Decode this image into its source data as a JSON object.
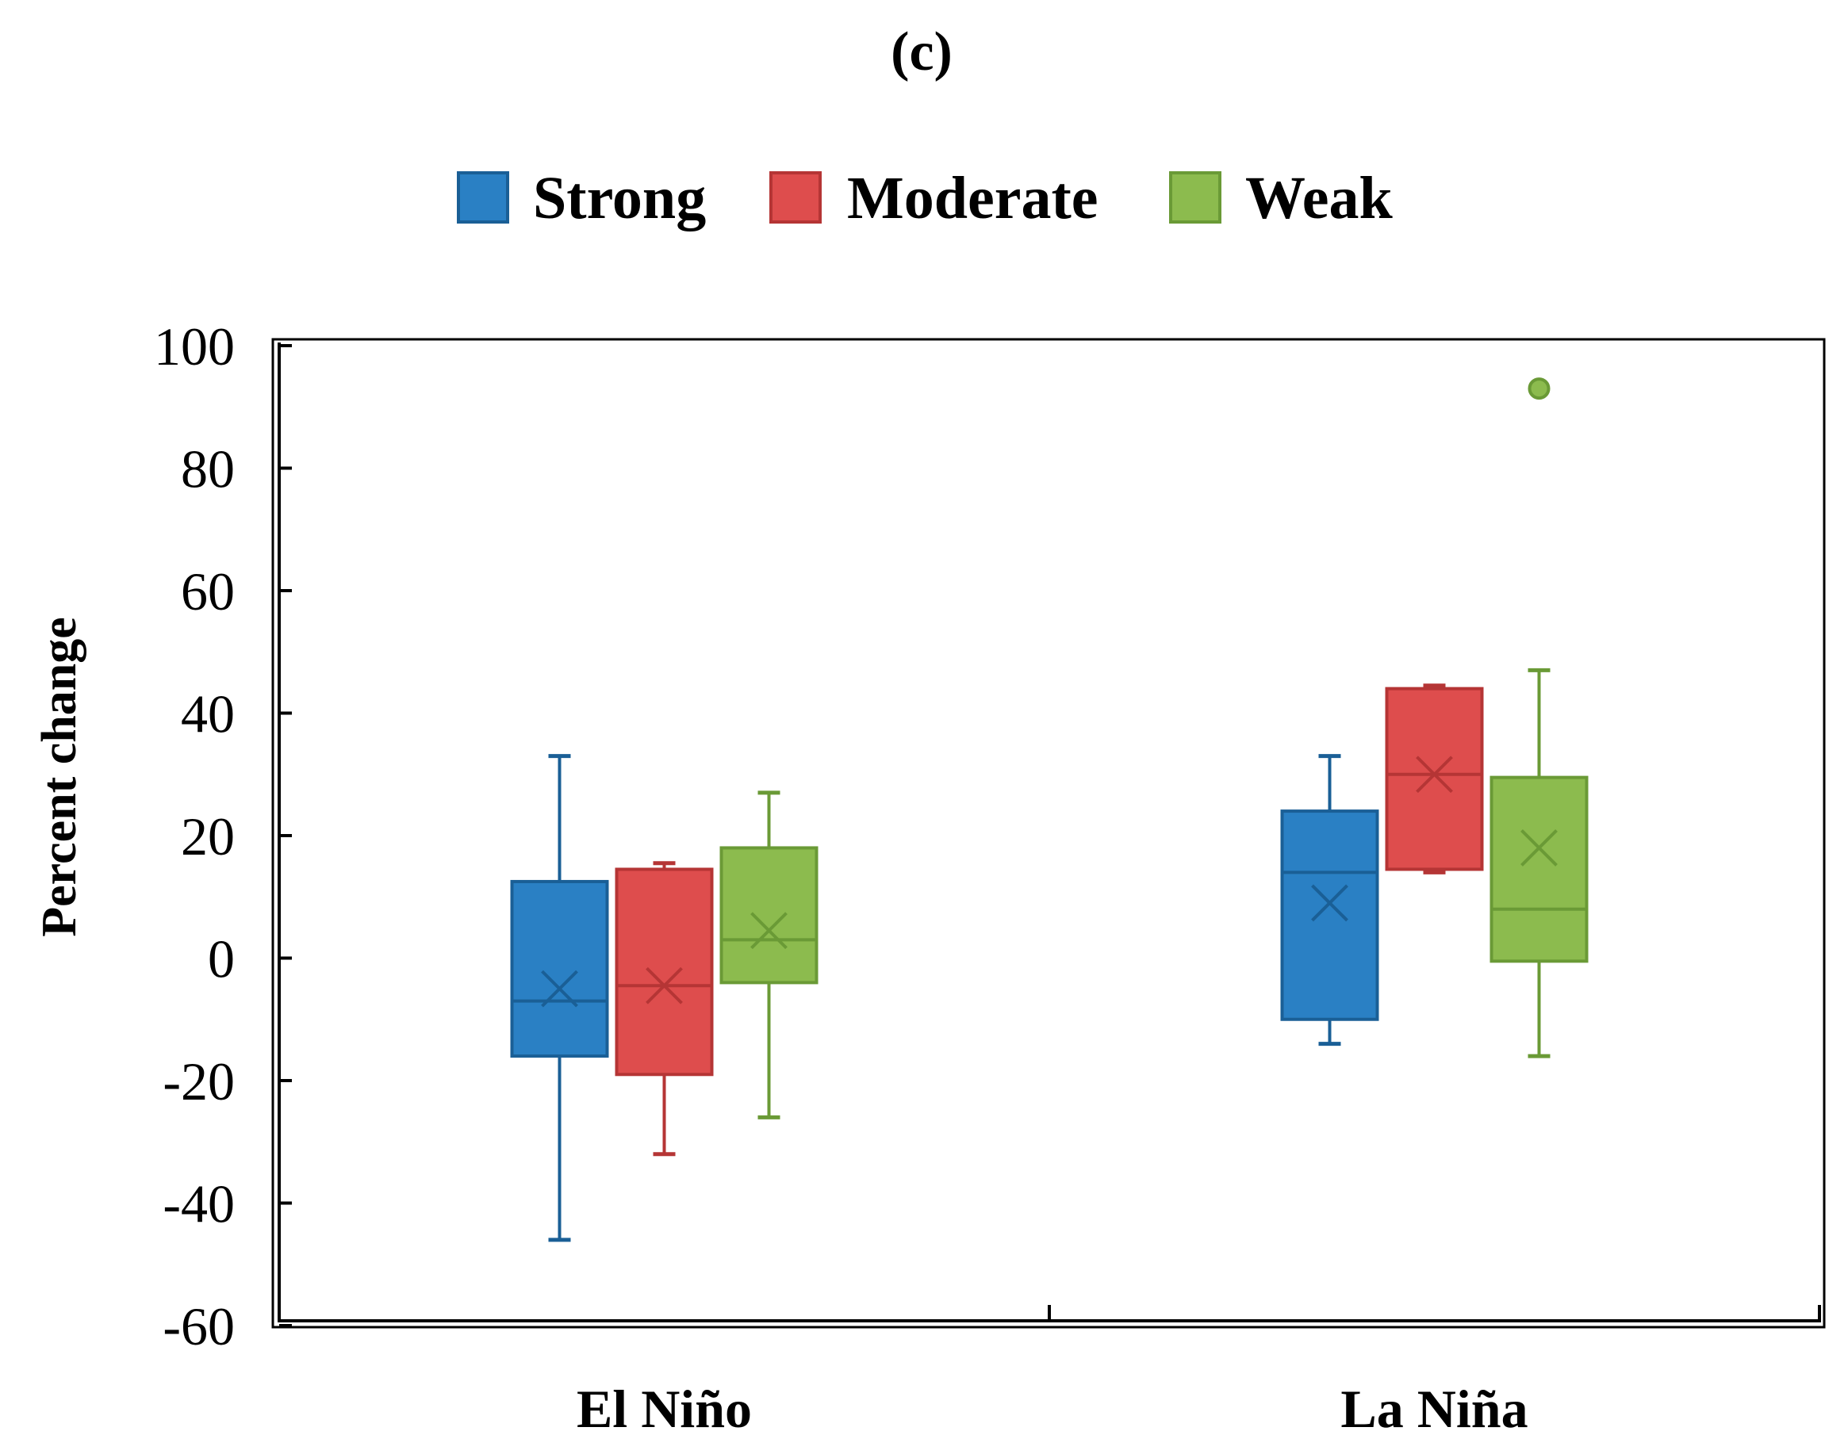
{
  "chart_data": {
    "type": "boxplot",
    "title": "(c)",
    "xlabel": "",
    "ylabel": "Percent change",
    "ylim": [
      -60,
      100
    ],
    "yticks": [
      100,
      80,
      60,
      40,
      20,
      0,
      -20,
      -40,
      -60
    ],
    "categories": [
      "El Niño",
      "La Niña"
    ],
    "legend_position": "top-center",
    "series": [
      {
        "name": "Strong",
        "fill": "#2a80c4",
        "stroke": "#1a5f96",
        "boxes": [
          {
            "whisker_low": -46,
            "q1": -16,
            "median": -7,
            "q3": 12.5,
            "whisker_high": 33,
            "mean": -5,
            "outliers": []
          },
          {
            "whisker_low": -14,
            "q1": -10,
            "median": 14,
            "q3": 24,
            "whisker_high": 33,
            "mean": 9,
            "outliers": []
          }
        ]
      },
      {
        "name": "Moderate",
        "fill": "#de4d4d",
        "stroke": "#b53535",
        "boxes": [
          {
            "whisker_low": -32,
            "q1": -19,
            "median": -4.5,
            "q3": 14.5,
            "whisker_high": 15.5,
            "mean": -4.5,
            "outliers": []
          },
          {
            "whisker_low": 14,
            "q1": 14.5,
            "median": 30,
            "q3": 44,
            "whisker_high": 44.5,
            "mean": 30,
            "outliers": []
          }
        ]
      },
      {
        "name": "Weak",
        "fill": "#8cbb4e",
        "stroke": "#6a9a36",
        "boxes": [
          {
            "whisker_low": -26,
            "q1": -4,
            "median": 3,
            "q3": 18,
            "whisker_high": 27,
            "mean": 4.5,
            "outliers": []
          },
          {
            "whisker_low": -16,
            "q1": -0.5,
            "median": 8,
            "q3": 29.5,
            "whisker_high": 47,
            "mean": 18,
            "outliers": [
              93
            ]
          }
        ]
      }
    ]
  }
}
